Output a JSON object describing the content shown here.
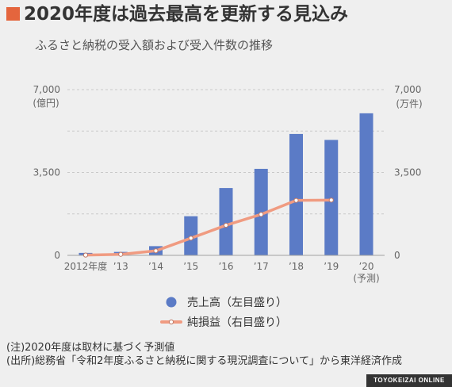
{
  "colors": {
    "background": "#efefef",
    "title_marker": "#e4653d",
    "bar": "#5b7bc6",
    "line": "#f09b81",
    "line_marker": "#ffffff",
    "line_marker_stroke": "#c27a66",
    "gridline": "#c9c9c9",
    "axis": "#a0a0a0",
    "footer_bar": "#333333"
  },
  "chart_data": {
    "type": "bar",
    "title": "2020年度は過去最高を更新する見込み",
    "subtitle": "ふるさと納税の受入額および受入件数の推移",
    "categories": [
      "2012年度",
      "’13",
      "’14",
      "’15",
      "’16",
      "’17",
      "’18",
      "’19",
      "’20"
    ],
    "annotations": [
      {
        "category": "’20",
        "text": "(予測)"
      }
    ],
    "series": [
      {
        "name": "売上高（左目盛り）",
        "type": "bar",
        "axis": "left",
        "values": [
          104,
          146,
          389,
          1653,
          2844,
          3653,
          5127,
          4875,
          6000
        ]
      },
      {
        "name": "純損益（右目盛り）",
        "type": "line",
        "axis": "right",
        "values": [
          12,
          43,
          191,
          726,
          1271,
          1730,
          2322,
          2334,
          null
        ]
      }
    ],
    "left_axis": {
      "unit": "(億円)",
      "ylim": [
        0,
        7000
      ],
      "ticks": [
        0,
        3500,
        7000
      ],
      "tick_labels": [
        "0",
        "3,500",
        "7,000"
      ]
    },
    "right_axis": {
      "unit": "(万件)",
      "ylim": [
        0,
        7000
      ],
      "ticks": [
        0,
        3500,
        7000
      ],
      "tick_labels": [
        "0",
        "3,500",
        "7,000"
      ]
    },
    "grid": true,
    "grid_step": 1750,
    "legend_position": "bottom"
  },
  "notes": [
    "(注)2020年度は取材に基づく予測値",
    "(出所)総務省「令和2年度ふるさと納税に関する現況調査について」から東洋経済作成"
  ],
  "footer": {
    "brand": "TOYOKEIZAI ONLINE"
  }
}
